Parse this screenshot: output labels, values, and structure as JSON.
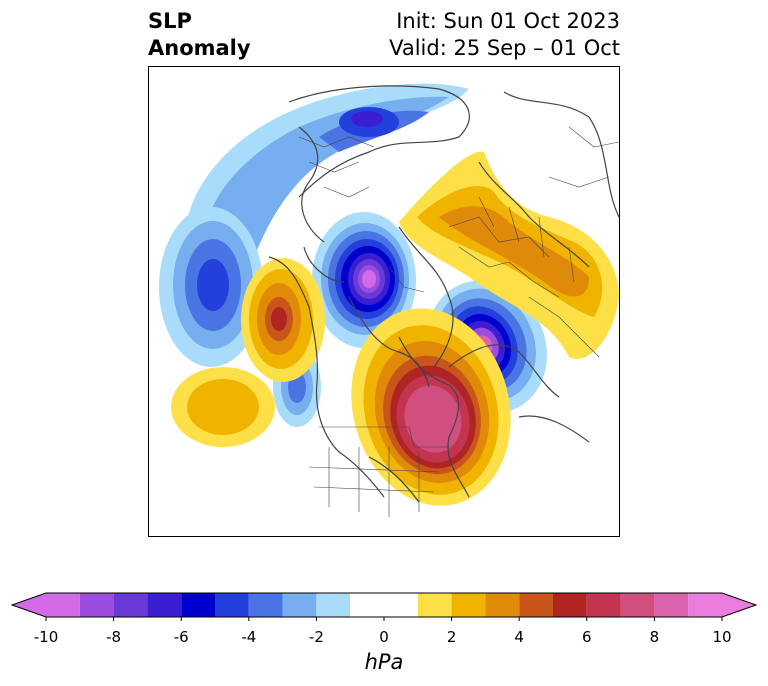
{
  "header": {
    "title_line1": "SLP",
    "title_line2": "Anomaly",
    "init_text": "Init: Sun 01 Oct 2023",
    "valid_text": "Valid: 25 Sep – 01 Oct"
  },
  "colorbar": {
    "units": "hPa",
    "tick_labels": [
      "-10",
      "-8",
      "-6",
      "-4",
      "-2",
      "0",
      "2",
      "4",
      "6",
      "8",
      "10"
    ],
    "levels": [
      -10,
      -9,
      -8,
      -7,
      -6,
      -5,
      -4,
      -3,
      -2,
      -1,
      1,
      2,
      3,
      4,
      5,
      6,
      7,
      8,
      9,
      10
    ],
    "colors": [
      "#d36ae6",
      "#9b4de0",
      "#6a3ad8",
      "#3a1fd2",
      "#0000cc",
      "#2340dc",
      "#4a74e4",
      "#76aef0",
      "#a9dcfa",
      "#ffffff",
      "#fde047",
      "#f0b400",
      "#e08a0a",
      "#c8561a",
      "#b02424",
      "#c23450",
      "#d14f7e",
      "#dc64ae",
      "#e97cdc"
    ]
  },
  "legend_colors": {
    "neg": [
      "#a9dcfa",
      "#76aef0",
      "#4a74e4",
      "#2340dc",
      "#0000cc",
      "#3a1fd2",
      "#6a3ad8",
      "#9b4de0",
      "#d36ae6"
    ],
    "pos": [
      "#fde047",
      "#f0b400",
      "#e08a0a",
      "#c8561a",
      "#b02424",
      "#c23450",
      "#d14f7e",
      "#dc64ae",
      "#e97cdc"
    ]
  }
}
